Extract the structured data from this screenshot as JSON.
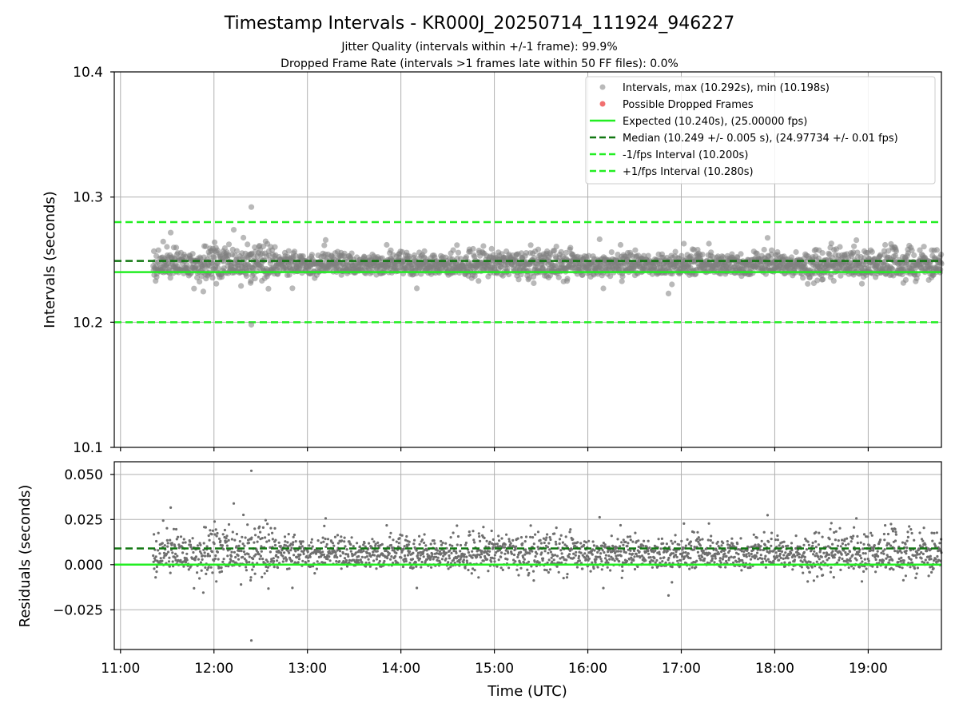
{
  "title": "Timestamp Intervals - KR000J_20250714_111924_946227",
  "subtitle_1": "Jitter Quality (intervals within +/-1 frame): 99.9%",
  "subtitle_2": "Dropped Frame Rate (intervals >1 frames late within 50 FF files): 0.0%",
  "colors": {
    "points": "#808080",
    "dropped": "#f06060",
    "expected": "#22ee22",
    "median": "#117711",
    "interval": "#22ee22"
  },
  "legend": {
    "intervals": "Intervals, max (10.292s), min (10.198s)",
    "dropped": "Possible Dropped Frames",
    "expected": "Expected (10.240s), (25.00000 fps)",
    "median": "Median (10.249 +/- 0.005 s), (24.97734 +/- 0.01 fps)",
    "minus": "-1/fps Interval (10.200s)",
    "plus": "+1/fps Interval (10.280s)"
  },
  "chart_data": [
    {
      "type": "scatter",
      "panel": "intervals",
      "xlabel": "",
      "ylabel": "Intervals (seconds)",
      "xlim": [
        "10:56",
        "19:47"
      ],
      "ylim": [
        10.1,
        10.4
      ],
      "yticks": [
        "10.1",
        "10.2",
        "10.3",
        "10.4"
      ],
      "grid": true,
      "legend_position": "top-right",
      "x_start": "11:21",
      "x_end": "19:47",
      "reference_lines": {
        "expected": 10.24,
        "median": 10.249,
        "minus_interval": 10.2,
        "plus_interval": 10.28
      },
      "series": [
        {
          "name": "Intervals, max (10.292s), min (10.198s)",
          "approx_center": 10.247,
          "approx_spread": 0.005,
          "max": 10.292,
          "min": 10.198
        }
      ]
    },
    {
      "type": "scatter",
      "panel": "residuals",
      "xlabel": "Time (UTC)",
      "ylabel": "Residuals (seconds)",
      "xlim": [
        "10:56",
        "19:47"
      ],
      "ylim": [
        -0.047,
        0.057
      ],
      "yticks": [
        "−0.025",
        "0.000",
        "0.025",
        "0.050"
      ],
      "xticks": [
        "11:00",
        "12:00",
        "13:00",
        "14:00",
        "15:00",
        "16:00",
        "17:00",
        "18:00",
        "19:00"
      ],
      "grid": true,
      "reference_lines": {
        "zero": 0.0,
        "median": 0.009
      },
      "series": [
        {
          "name": "Residuals",
          "approx_center": 0.007,
          "max": 0.052,
          "min": -0.042
        }
      ]
    }
  ]
}
